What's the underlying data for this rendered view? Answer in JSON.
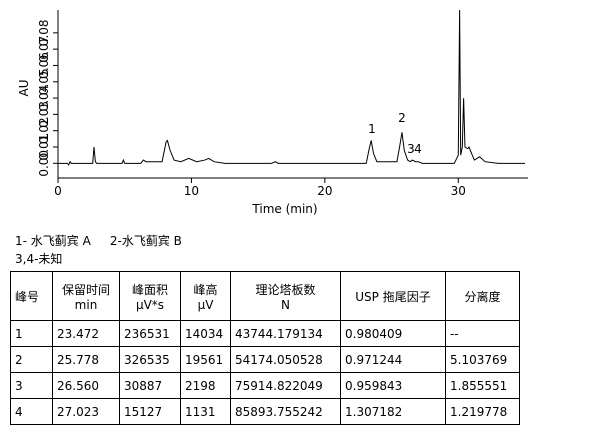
{
  "chart_data": {
    "type": "line",
    "x_label": "Time (min)",
    "y_label": "AU",
    "x": [
      0,
      0.7,
      0.8,
      0.9,
      1.0,
      2.6,
      2.7,
      2.8,
      2.9,
      4.8,
      4.9,
      5,
      6.2,
      6.4,
      6.6,
      7.8,
      8.1,
      8.2,
      8.4,
      8.7,
      9.2,
      9.8,
      10.4,
      11.0,
      11.3,
      11.7,
      12.5,
      16,
      16.3,
      16.5,
      23.1,
      23.3,
      23.47,
      23.65,
      23.9,
      25.4,
      25.6,
      25.78,
      25.95,
      26.2,
      26.4,
      26.56,
      26.8,
      27.02,
      27.3,
      29.7,
      30.0,
      30.1,
      30.18,
      30.3,
      30.4,
      30.5,
      30.7,
      30.8,
      31.0,
      31.2,
      31.6,
      32,
      33,
      35
    ],
    "series": [
      {
        "name": "AU",
        "color": "#000000",
        "values": [
          0,
          0,
          -0.001,
          0.001,
          0,
          0,
          0.01,
          0.001,
          0,
          0,
          0.002,
          0,
          0,
          0.002,
          0.001,
          0.001,
          0.013,
          0.014,
          0.008,
          0.002,
          0.001,
          0.003,
          0.001,
          0.002,
          0.003,
          0.001,
          0,
          0,
          0.001,
          0,
          0,
          0.008,
          0.014,
          0.006,
          0.001,
          0.001,
          0.01,
          0.019,
          0.008,
          0.002,
          0.001,
          0.002,
          0.001,
          0.001,
          0,
          0,
          0.005,
          0.094,
          0.005,
          0.01,
          0.04,
          0.01,
          0.009,
          0.01,
          0.006,
          0.002,
          0.004,
          0.001,
          0,
          0
        ]
      }
    ],
    "xlim": [
      0,
      35
    ],
    "ylim": [
      -0.009,
      0.094
    ],
    "xticks": [
      0,
      10,
      20,
      30
    ],
    "yticks": [
      {
        "value": 0,
        "label": "0.00"
      },
      0.01,
      0.02,
      0.03,
      0.04,
      0.05,
      0.06,
      0.07,
      0.08
    ],
    "annotations": [
      "1",
      "2",
      "3",
      "4"
    ]
  },
  "notes": [
    "1- 水飞蓟宾 A     2-水飞蓟宾 B",
    "3,4-未知"
  ],
  "table": {
    "header": [
      [
        "峰号"
      ],
      [
        "保留时间",
        "min"
      ],
      [
        "峰面积",
        "µV*s"
      ],
      [
        "峰高",
        "µV"
      ],
      [
        "理论塔板数",
        "N"
      ],
      [
        "USP 拖尾因子"
      ],
      [
        "分离度"
      ]
    ],
    "rows": [
      [
        "1",
        "23.472",
        "236531",
        "14034",
        "43744.179134",
        "0.980409",
        "--"
      ],
      [
        "2",
        "25.778",
        "326535",
        "19561",
        "54174.050528",
        "0.971244",
        "5.103769"
      ],
      [
        "3",
        "26.560",
        "30887",
        "2198",
        "75914.822049",
        "0.959843",
        "1.855551"
      ],
      [
        "4",
        "27.023",
        "15127",
        "1131",
        "85893.755242",
        "1.307182",
        "1.219778"
      ]
    ]
  }
}
